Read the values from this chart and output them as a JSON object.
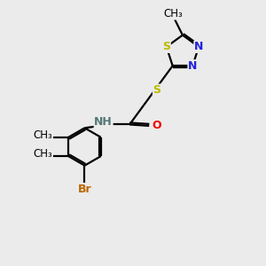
{
  "bg_color": "#ebebeb",
  "bond_color": "#000000",
  "N_color": "#2222dd",
  "S_color": "#bbbb00",
  "O_color": "#ee0000",
  "Br_color": "#bb6600",
  "NH_color": "#557777",
  "C_color": "#000000",
  "bond_width": 1.6,
  "figsize": [
    3.0,
    3.0
  ],
  "dpi": 100,
  "xlim": [
    0,
    10
  ],
  "ylim": [
    0,
    10
  ]
}
